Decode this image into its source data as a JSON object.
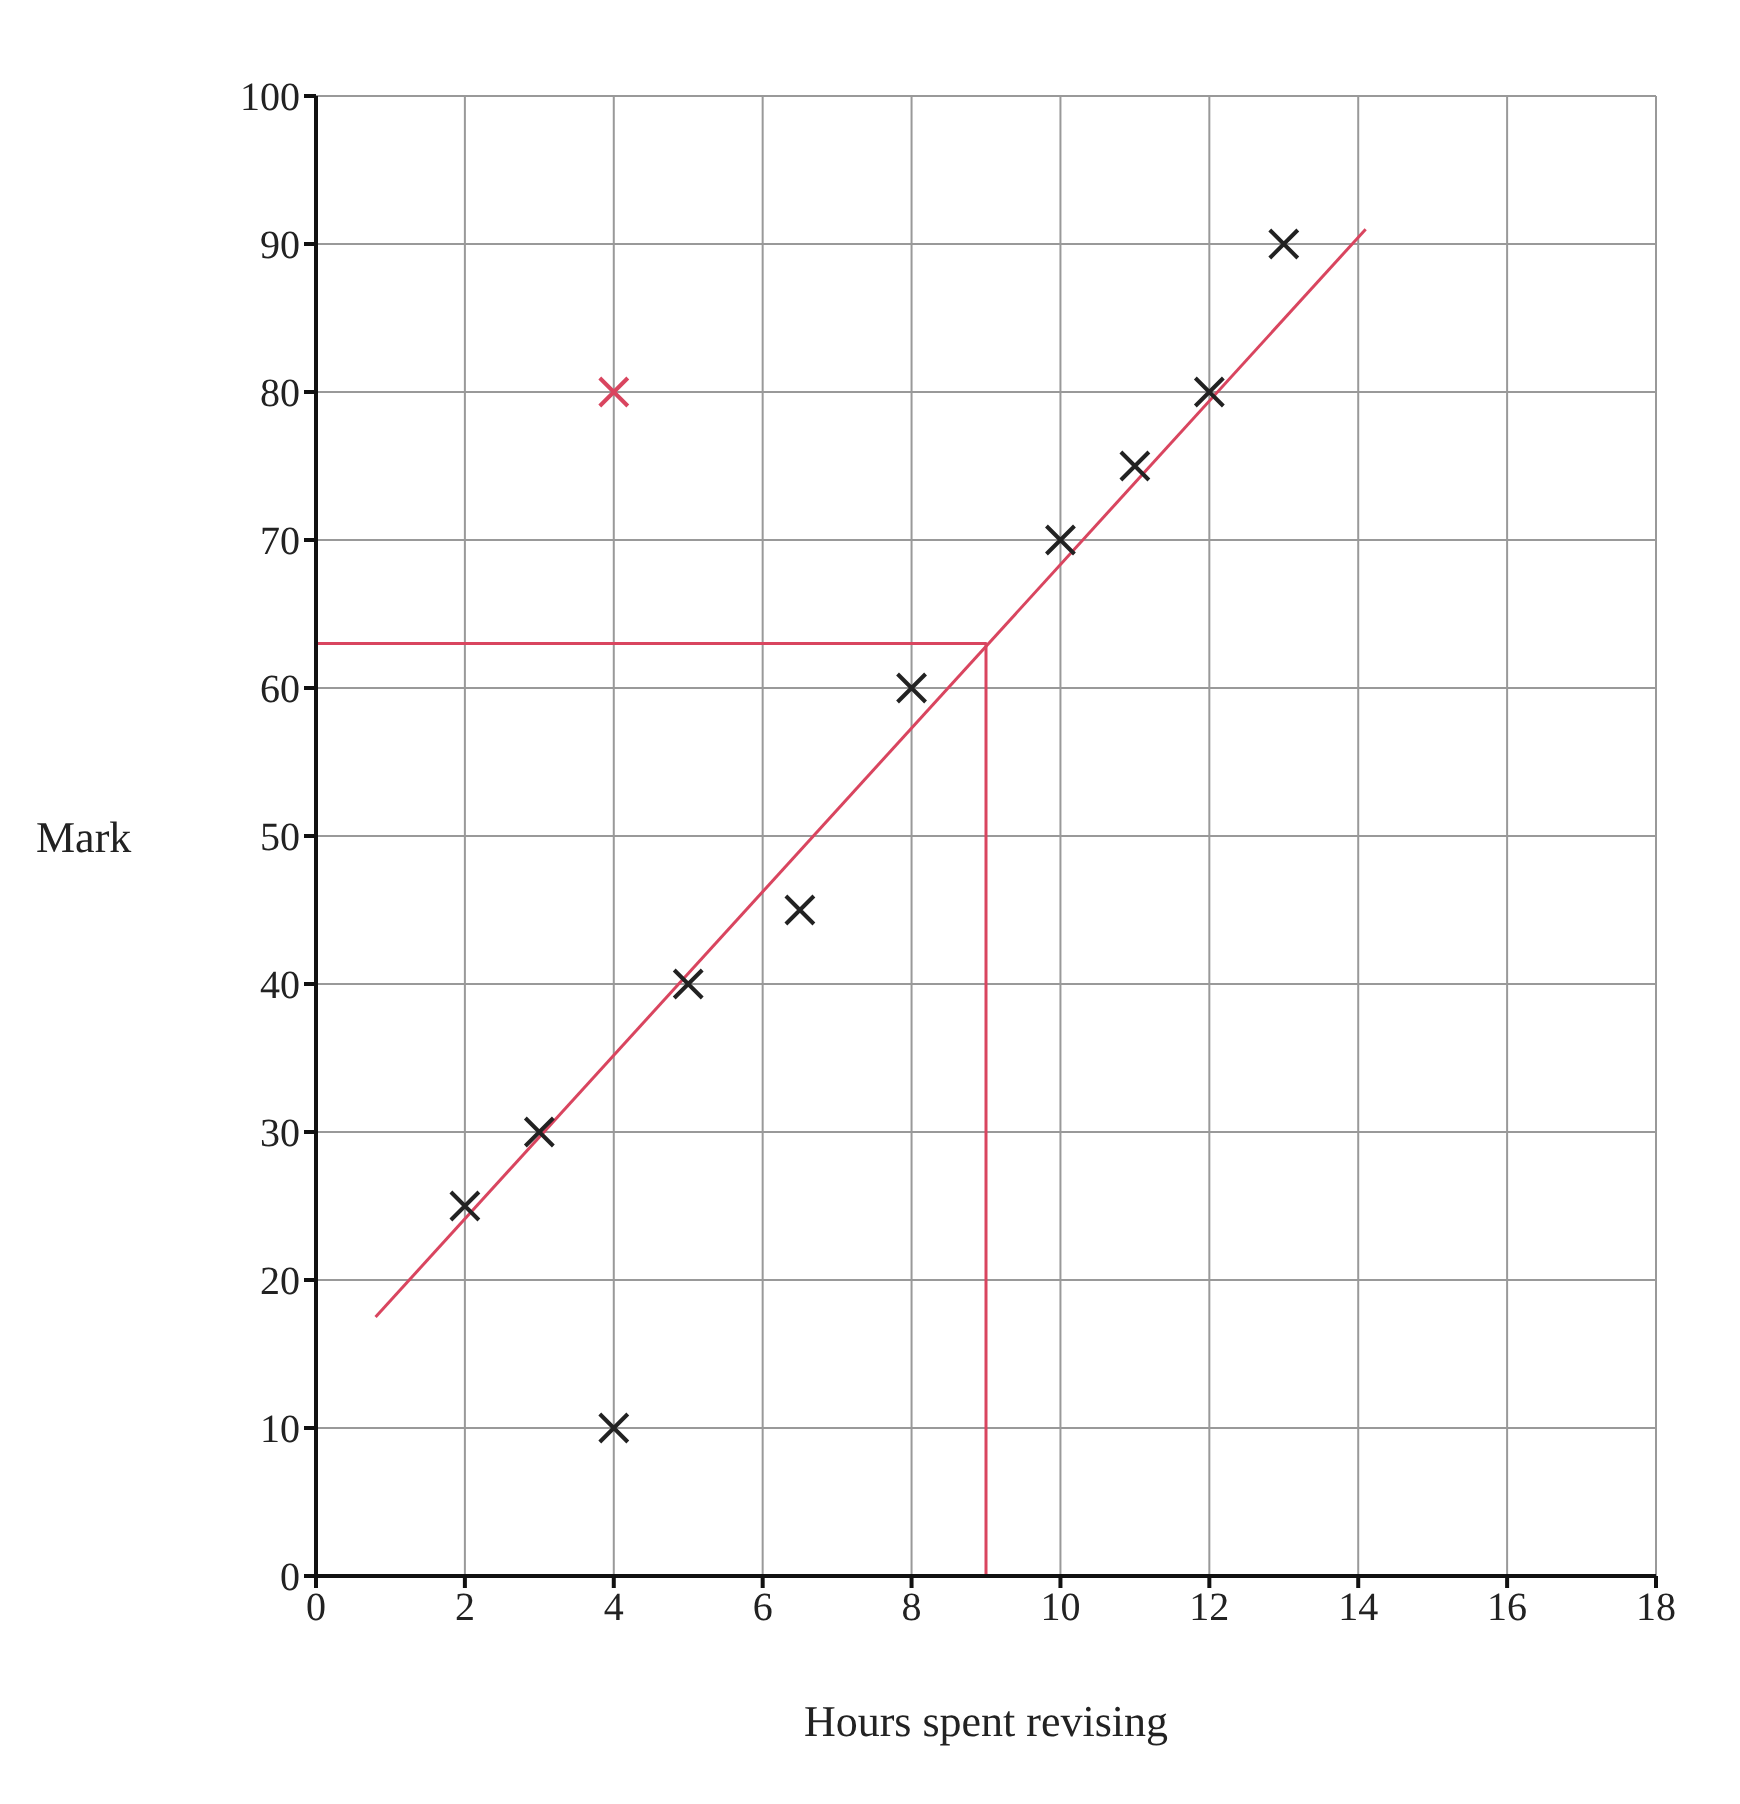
{
  "chart_data": {
    "type": "scatter",
    "xlabel": "Hours spent revising",
    "ylabel": "Mark",
    "xlim": [
      0,
      18
    ],
    "xticks": [
      0,
      2,
      4,
      6,
      8,
      10,
      12,
      14,
      16,
      18
    ],
    "ylim": [
      0,
      100
    ],
    "yticks": [
      0,
      10,
      20,
      30,
      40,
      50,
      60,
      70,
      80,
      90,
      100
    ],
    "grid": true,
    "marker": "cross",
    "series": [
      {
        "color": "#222222",
        "x": [
          2,
          3,
          4,
          5,
          6.5,
          8,
          10,
          11,
          12,
          13
        ],
        "values": [
          25,
          30,
          10,
          40,
          45,
          60,
          70,
          75,
          80,
          90
        ]
      },
      {
        "color": "#d9455f",
        "x": [
          4
        ],
        "values": [
          80
        ]
      },
      {
        "type": "line",
        "color": "#d9455f",
        "x": [
          0.8,
          14.1
        ],
        "values": [
          17.5,
          91
        ],
        "marker": "none",
        "line_style": "solid"
      },
      {
        "type": "line",
        "color": "#d9455f",
        "x": [
          0,
          9,
          9
        ],
        "values": [
          63,
          63,
          0
        ],
        "marker": "none",
        "line_style": "solid"
      }
    ]
  }
}
